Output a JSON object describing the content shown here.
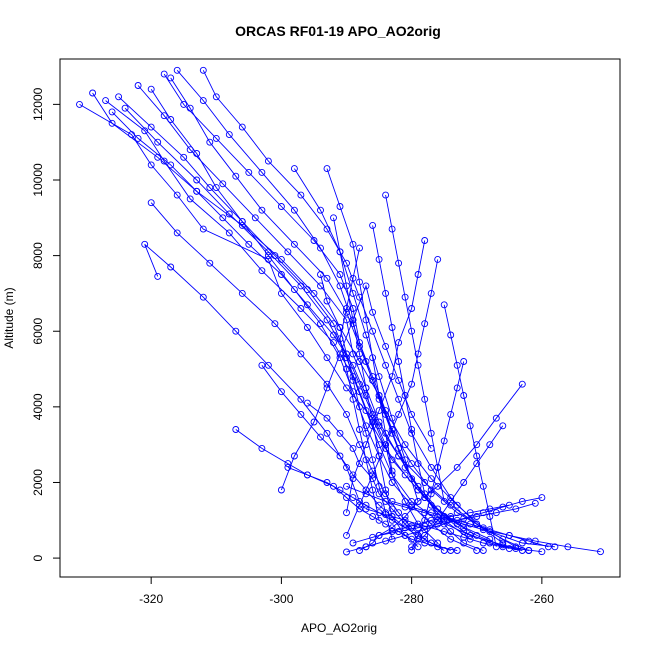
{
  "chart_data": {
    "type": "line",
    "title": "ORCAS RF01-19 APO_AO2orig",
    "xlabel": "APO_AO2orig",
    "ylabel": "Altitude (m)",
    "xlim": [
      -334,
      -248
    ],
    "ylim": [
      -500,
      13200
    ],
    "xticks": [
      -320,
      -300,
      -280,
      -260
    ],
    "xtick_labels": [
      "-320",
      "-300",
      "-280",
      "-260"
    ],
    "yticks": [
      0,
      2000,
      4000,
      6000,
      8000,
      10000,
      12000
    ],
    "ytick_labels": [
      "0",
      "2000",
      "4000",
      "6000",
      "8000",
      "10000",
      "12000"
    ],
    "grid": false,
    "legend": "none",
    "line_color": "#0000ff",
    "marker": "open-circle",
    "series": [
      {
        "x": [
          -331,
          -323,
          -320,
          -316,
          -312,
          -302,
          -300,
          -296,
          -293,
          -290,
          -286,
          -284,
          -281,
          -278,
          -275,
          -272,
          -268,
          -264,
          -260
        ],
        "y": [
          12000,
          11200,
          10400,
          9600,
          8700,
          7900,
          7000,
          6100,
          5300,
          4500,
          3700,
          2900,
          2200,
          1600,
          1100,
          700,
          400,
          250,
          170
        ]
      },
      {
        "x": [
          -329,
          -326,
          -319,
          -313,
          -306,
          -300,
          -295,
          -291,
          -288,
          -285,
          -283,
          -280,
          -277,
          -273,
          -268,
          -263,
          -258
        ],
        "y": [
          12300,
          11500,
          10600,
          9700,
          8800,
          7900,
          7000,
          6100,
          5200,
          4300,
          3400,
          2500,
          1800,
          1200,
          700,
          400,
          300
        ]
      },
      {
        "x": [
          -327,
          -321,
          -318,
          -314,
          -308,
          -303,
          -297,
          -292,
          -289,
          -287,
          -285,
          -283,
          -280,
          -276,
          -271,
          -266,
          -262
        ],
        "y": [
          12100,
          11300,
          10500,
          9500,
          8600,
          7600,
          6600,
          5700,
          4800,
          3900,
          3000,
          2200,
          1500,
          1000,
          600,
          350,
          200
        ]
      },
      {
        "x": [
          -325,
          -320,
          -315,
          -311,
          -306,
          -301,
          -296,
          -292,
          -290,
          -288,
          -286,
          -283,
          -279,
          -275,
          -270,
          -265
        ],
        "y": [
          12200,
          11400,
          10600,
          9800,
          8900,
          8000,
          7100,
          6200,
          5300,
          4400,
          3500,
          2600,
          1800,
          1100,
          600,
          250
        ]
      },
      {
        "x": [
          -322,
          -318,
          -314,
          -309,
          -304,
          -299,
          -294,
          -290,
          -289,
          -287,
          -285,
          -282,
          -279,
          -276,
          -272
        ],
        "y": [
          12500,
          11700,
          10800,
          9900,
          9000,
          8100,
          7200,
          6300,
          5400,
          4500,
          3600,
          2700,
          1900,
          1300,
          800
        ]
      },
      {
        "x": [
          -318,
          -315,
          -310,
          -305,
          -300,
          -295,
          -291,
          -289,
          -288,
          -286,
          -284,
          -281,
          -277,
          -273,
          -269,
          -264
        ],
        "y": [
          12800,
          12000,
          11100,
          10200,
          9300,
          8400,
          7500,
          6600,
          5700,
          4800,
          3900,
          3000,
          2100,
          1400,
          800,
          300
        ]
      },
      {
        "x": [
          -317,
          -314,
          -311,
          -307,
          -303,
          -298,
          -293,
          -290,
          -288,
          -286,
          -284,
          -282,
          -280,
          -277,
          -273,
          -268
        ],
        "y": [
          12700,
          11900,
          11000,
          10100,
          9200,
          8300,
          7400,
          6500,
          5600,
          4700,
          3800,
          2900,
          2100,
          1400,
          900,
          500
        ]
      },
      {
        "x": [
          -324,
          -319,
          -313,
          -308,
          -302,
          -297,
          -293,
          -290,
          -288,
          -286,
          -284,
          -283,
          -281,
          -279,
          -276
        ],
        "y": [
          11900,
          11000,
          10000,
          9100,
          8100,
          7200,
          6300,
          5400,
          4600,
          3800,
          3000,
          2200,
          1500,
          900,
          400
        ]
      },
      {
        "x": [
          -326,
          -322,
          -317,
          -313,
          -309,
          -305,
          -300,
          -296,
          -292,
          -289,
          -287,
          -285,
          -282,
          -278,
          -274,
          -270,
          -266,
          -262
        ],
        "y": [
          11800,
          11100,
          10400,
          9700,
          9000,
          8300,
          7500,
          6700,
          5900,
          5100,
          4300,
          3500,
          2700,
          2000,
          1400,
          900,
          500,
          200
        ]
      },
      {
        "x": [
          -320,
          -317,
          -313,
          -310,
          -306,
          -302,
          -298,
          -294,
          -291,
          -289,
          -287,
          -285,
          -283,
          -280,
          -277,
          -274,
          -270
        ],
        "y": [
          12400,
          11600,
          10700,
          9800,
          8900,
          8000,
          7100,
          6200,
          5300,
          4400,
          3500,
          2700,
          2000,
          1400,
          900,
          500,
          200
        ]
      },
      {
        "x": [
          -316,
          -312,
          -308,
          -303,
          -298,
          -294,
          -291,
          -289,
          -287,
          -285,
          -283,
          -281,
          -278,
          -275,
          -271
        ],
        "y": [
          12900,
          12100,
          11200,
          10200,
          9200,
          8200,
          7200,
          6200,
          5200,
          4200,
          3300,
          2400,
          1600,
          1000,
          500
        ]
      },
      {
        "x": [
          -312,
          -310,
          -306,
          -302,
          -297,
          -293,
          -290,
          -288,
          -286,
          -284,
          -282,
          -280,
          -277,
          -274,
          -270,
          -266
        ],
        "y": [
          12900,
          12200,
          11400,
          10500,
          9600,
          8700,
          7800,
          6900,
          6000,
          5100,
          4200,
          3300,
          2400,
          1600,
          900,
          400
        ]
      },
      {
        "x": [
          -320,
          -316,
          -311,
          -306,
          -301,
          -297,
          -293,
          -290,
          -288,
          -286,
          -284,
          -282,
          -280,
          -278,
          -275
        ],
        "y": [
          9400,
          8600,
          7800,
          7000,
          6200,
          5400,
          4600,
          3800,
          3000,
          2300,
          1700,
          1200,
          800,
          500,
          200
        ]
      },
      {
        "x": [
          -319,
          -321,
          -317,
          -312,
          -307,
          -302,
          -297,
          -293,
          -290,
          -288
        ],
        "y": [
          7450,
          8300,
          7700,
          6900,
          6000,
          5100,
          4200,
          3300,
          2400,
          1500
        ]
      },
      {
        "x": [
          -307,
          -303,
          -299,
          -296,
          -292,
          -290,
          -288,
          -286,
          -284,
          -282,
          -280,
          -278,
          -276,
          -273
        ],
        "y": [
          3400,
          2900,
          2500,
          2200,
          1900,
          1600,
          1300,
          1100,
          900,
          700,
          500,
          400,
          300,
          200
        ]
      },
      {
        "x": [
          -303,
          -300,
          -297,
          -294,
          -291,
          -289,
          -287,
          -285,
          -283,
          -281,
          -279,
          -277,
          -274
        ],
        "y": [
          5100,
          4400,
          3800,
          3200,
          2700,
          2200,
          1800,
          1400,
          1100,
          800,
          600,
          400,
          200
        ]
      },
      {
        "x": [
          -300,
          -298,
          -295,
          -293,
          -291,
          -289,
          -287,
          -286,
          -284,
          -282,
          -280,
          -277
        ],
        "y": [
          1800,
          2700,
          3600,
          4500,
          5400,
          6300,
          7200,
          6500,
          5600,
          4700,
          3800,
          2900
        ]
      },
      {
        "x": [
          -263,
          -267,
          -270,
          -273,
          -276,
          -279,
          -281,
          -283,
          -285,
          -286,
          -287,
          -288
        ],
        "y": [
          4600,
          3700,
          3000,
          2400,
          1900,
          1500,
          1100,
          800,
          600,
          400,
          300,
          200
        ]
      },
      {
        "x": [
          -251,
          -256,
          -261,
          -265,
          -269,
          -272,
          -275,
          -278,
          -281,
          -284,
          -287,
          -290
        ],
        "y": [
          170,
          300,
          450,
          600,
          750,
          900,
          1050,
          1200,
          1350,
          1500,
          1700,
          1900
        ]
      },
      {
        "x": [
          -290,
          -287,
          -284,
          -281,
          -278,
          -275,
          -272,
          -269,
          -266,
          -263,
          -260
        ],
        "y": [
          160,
          300,
          450,
          600,
          750,
          900,
          1050,
          1200,
          1350,
          1500,
          1600
        ]
      },
      {
        "x": [
          -276,
          -277,
          -278,
          -279,
          -280,
          -282,
          -284,
          -286,
          -288,
          -290
        ],
        "y": [
          7900,
          7000,
          6200,
          5400,
          4600,
          3800,
          3000,
          2200,
          1400,
          600
        ]
      },
      {
        "x": [
          -278,
          -279,
          -280,
          -282,
          -283,
          -285,
          -287,
          -289,
          -290
        ],
        "y": [
          8400,
          7500,
          6600,
          5700,
          4800,
          3900,
          3000,
          2100,
          1200
        ]
      },
      {
        "x": [
          -284,
          -283,
          -282,
          -281,
          -280,
          -279,
          -278,
          -277,
          -276,
          -275
        ],
        "y": [
          9600,
          8700,
          7800,
          6900,
          6000,
          5100,
          4200,
          3300,
          2400,
          1500
        ]
      },
      {
        "x": [
          -286,
          -285,
          -284,
          -283,
          -282,
          -281,
          -280,
          -279,
          -278,
          -276,
          -274,
          -272,
          -269
        ],
        "y": [
          8800,
          7900,
          7000,
          6100,
          5200,
          4300,
          3400,
          2500,
          1700,
          1100,
          700,
          400,
          200
        ]
      },
      {
        "x": [
          -292,
          -291,
          -290,
          -289,
          -288,
          -287,
          -286,
          -285,
          -284,
          -283,
          -281,
          -279
        ],
        "y": [
          9000,
          8100,
          7200,
          6300,
          5400,
          4500,
          3600,
          2700,
          1800,
          1100,
          600,
          300
        ]
      },
      {
        "x": [
          -288,
          -289,
          -290,
          -291,
          -290,
          -289,
          -288,
          -287,
          -286,
          -285
        ],
        "y": [
          8200,
          7400,
          6600,
          5800,
          5000,
          4200,
          3400,
          2600,
          1800,
          1000
        ]
      },
      {
        "x": [
          -294,
          -293,
          -291,
          -290,
          -289,
          -288,
          -287,
          -286,
          -285,
          -284,
          -283
        ],
        "y": [
          7500,
          6800,
          6100,
          5400,
          4700,
          4000,
          3300,
          2600,
          1900,
          1200,
          500
        ]
      },
      {
        "x": [
          -289,
          -286,
          -283,
          -280,
          -277,
          -274,
          -271,
          -268,
          -265
        ],
        "y": [
          400,
          550,
          700,
          850,
          1000,
          1100,
          1200,
          1300,
          1400
        ]
      },
      {
        "x": [
          -285,
          -282,
          -279,
          -276,
          -273,
          -270,
          -267,
          -264,
          -261
        ],
        "y": [
          600,
          700,
          800,
          900,
          1000,
          1100,
          1200,
          1300,
          1450
        ]
      },
      {
        "x": [
          -283,
          -280,
          -277,
          -274,
          -271,
          -268,
          -265,
          -262,
          -259
        ],
        "y": [
          1500,
          1350,
          1200,
          1050,
          900,
          750,
          600,
          450,
          300
        ]
      },
      {
        "x": [
          -287,
          -284,
          -281,
          -278,
          -275,
          -272,
          -269,
          -266,
          -263
        ],
        "y": [
          1300,
          1150,
          1000,
          850,
          700,
          550,
          400,
          300,
          200
        ]
      },
      {
        "x": [
          -275,
          -274,
          -273,
          -272,
          -271,
          -270,
          -269,
          -268,
          -267
        ],
        "y": [
          6700,
          5900,
          5100,
          4300,
          3500,
          2700,
          1900,
          1100,
          300
        ]
      },
      {
        "x": [
          -272,
          -273,
          -274,
          -275,
          -276,
          -277,
          -278,
          -279,
          -280
        ],
        "y": [
          5200,
          4500,
          3800,
          3100,
          2400,
          1700,
          1000,
          600,
          200
        ]
      },
      {
        "x": [
          -266,
          -268,
          -270,
          -272,
          -274,
          -276,
          -278,
          -280
        ],
        "y": [
          3500,
          3000,
          2500,
          2000,
          1500,
          1000,
          600,
          300
        ]
      },
      {
        "x": [
          -298,
          -294,
          -291,
          -289,
          -287,
          -285,
          -283,
          -281,
          -279
        ],
        "y": [
          10300,
          9200,
          8100,
          7000,
          5900,
          4800,
          3700,
          2600,
          1500
        ]
      },
      {
        "x": [
          -293,
          -291,
          -289,
          -288,
          -287,
          -286,
          -285,
          -284,
          -283
        ],
        "y": [
          10300,
          9300,
          8300,
          7300,
          6300,
          5300,
          4300,
          3300,
          2300
        ]
      },
      {
        "x": [
          -296,
          -293,
          -291,
          -289,
          -288,
          -286,
          -285,
          -283,
          -281,
          -279
        ],
        "y": [
          4100,
          3700,
          3300,
          2900,
          2500,
          2100,
          1700,
          1300,
          900,
          500
        ]
      },
      {
        "x": [
          -299,
          -296,
          -293,
          -291,
          -289,
          -287,
          -285,
          -283,
          -281
        ],
        "y": [
          2400,
          2200,
          2000,
          1800,
          1600,
          1400,
          1200,
          1000,
          800
        ]
      }
    ]
  }
}
